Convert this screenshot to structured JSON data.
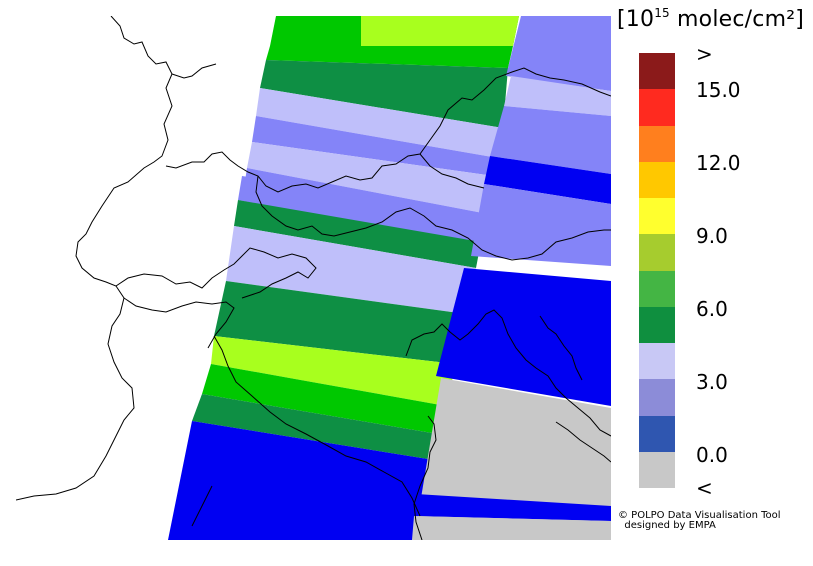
{
  "legend": {
    "unit_open": "[10",
    "unit_exp": "15",
    "unit_close": " molec/cm²]",
    "labels": [
      ">",
      "15.0",
      "12.0",
      "9.0",
      "6.0",
      "3.0",
      "0.0",
      "<"
    ],
    "colors": [
      "#8b1a1a",
      "#ff2a1f",
      "#ff7f1e",
      "#ffc800",
      "#ffff2e",
      "#a6cc2e",
      "#44b544",
      "#0f8f3f",
      "#c8c8f5",
      "#8c8cd8",
      "#2f56b0",
      "#c8c8c8"
    ]
  },
  "map_layers": {
    "colors": {
      "dark_green": "#0e8f44",
      "green": "#00c800",
      "lime": "#a8ff1e",
      "lavender": "#bfbffa",
      "periwinkle": "#8484f8",
      "blue": "#0000f2",
      "gray": "#c8c8c8",
      "background": "#ffffff",
      "border": "#000000"
    }
  },
  "credit": {
    "line1": "© POLPO Data Visualisation Tool",
    "line2": "  designed by EMPA"
  }
}
